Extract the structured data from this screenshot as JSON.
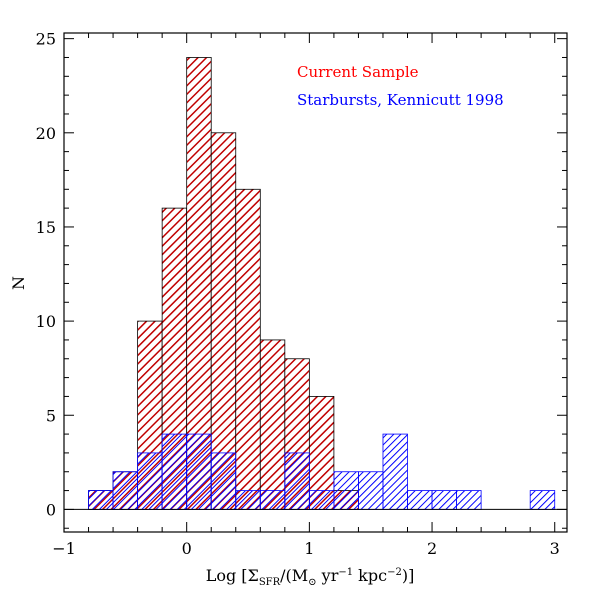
{
  "chart_data": {
    "type": "bar",
    "bin_width": 0.2,
    "xlabel": {
      "prefix": "Log [Σ",
      "sub": "SFR",
      "mid": "/(M",
      "sun": "⊙",
      "yr": " yr",
      "exp1": "−1",
      "kpc": " kpc",
      "exp2": "−2",
      "suffix": ")]"
    },
    "ylabel": "N",
    "xlim": [
      -1,
      3.1
    ],
    "ylim": [
      -1.2,
      25.3
    ],
    "xticks": [
      -1,
      0,
      1,
      2,
      3
    ],
    "xtick_labels": [
      "−1",
      "0",
      "1",
      "2",
      "3"
    ],
    "yticks": [
      0,
      5,
      10,
      15,
      20,
      25
    ],
    "ytick_labels": [
      "0",
      "5",
      "10",
      "15",
      "20",
      "25"
    ],
    "series": [
      {
        "name": "Current Sample",
        "color": "#ff0000",
        "hatch": "dense red diagonal",
        "bin_starts": [
          -0.8,
          -0.6,
          -0.4,
          -0.2,
          0.0,
          0.2,
          0.4,
          0.6,
          0.8,
          1.0,
          1.2
        ],
        "values": [
          1,
          2,
          10,
          16,
          24,
          20,
          17,
          9,
          8,
          6,
          1
        ]
      },
      {
        "name": "Starbursts, Kennicutt 1998",
        "color": "#0000ff",
        "hatch": "blue diagonal",
        "bin_starts": [
          -0.8,
          -0.6,
          -0.4,
          -0.2,
          0.0,
          0.2,
          0.4,
          0.6,
          0.8,
          1.0,
          1.2,
          1.4,
          1.6,
          1.8,
          2.0,
          2.2,
          2.4,
          2.6,
          2.8
        ],
        "values": [
          1,
          2,
          3,
          4,
          4,
          3,
          1,
          1,
          3,
          1,
          2,
          2,
          4,
          1,
          1,
          1,
          0,
          0,
          1
        ]
      }
    ],
    "legend_placement": "top-right",
    "grid": false
  }
}
